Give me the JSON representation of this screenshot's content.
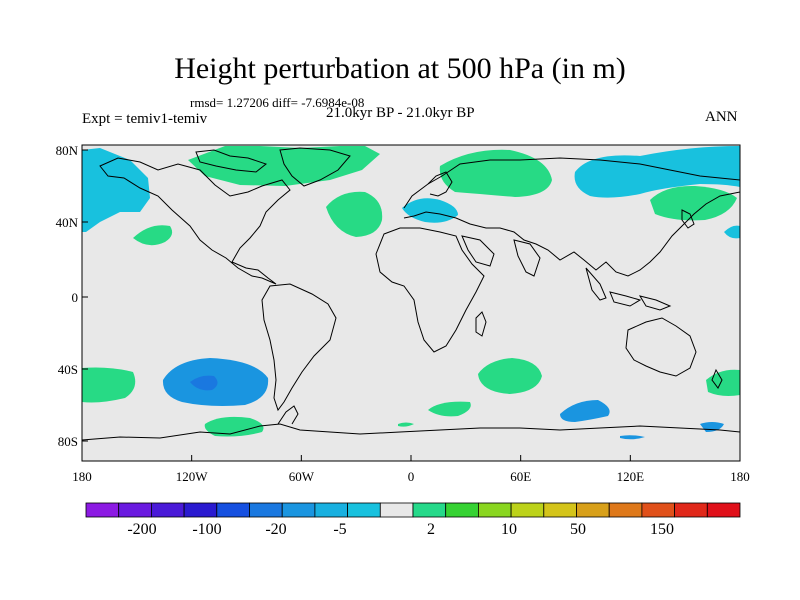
{
  "title": "Height perturbation at 500 hPa (in m)",
  "stats": "rmsd= 1.27206 diff= -7.6984e-08",
  "experiment": "Expt = temiv1-temiv",
  "period": "21.0kyr BP - 21.0kyr BP",
  "season": "ANN",
  "map": {
    "ocean_color": "#e8e8e8",
    "lat_ticks": [
      "80N",
      "40N",
      "0",
      "40S",
      "80S"
    ],
    "lon_ticks": [
      "180",
      "120W",
      "60W",
      "0",
      "60E",
      "120E",
      "180"
    ]
  },
  "anomaly_regions": [
    {
      "name": "north-pacific-neg",
      "sign": "negative",
      "level": "-5",
      "color": "#18c1de"
    },
    {
      "name": "greenland-pos",
      "sign": "positive",
      "level": "2",
      "color": "#27da85"
    },
    {
      "name": "north-atlantic-pos",
      "sign": "positive",
      "level": "2",
      "color": "#27da85"
    },
    {
      "name": "europe-neg",
      "sign": "negative",
      "level": "-5",
      "color": "#18c1de"
    },
    {
      "name": "siberia-pos",
      "sign": "positive",
      "level": "2",
      "color": "#27da85"
    },
    {
      "name": "north-pacific-east-neg",
      "sign": "negative",
      "level": "-5",
      "color": "#18c1de"
    },
    {
      "name": "japan-pos",
      "sign": "positive",
      "level": "2",
      "color": "#27da85"
    },
    {
      "name": "south-pacific-neg",
      "sign": "negative",
      "level": "-20",
      "color": "#1a95e0"
    },
    {
      "name": "southern-ocean-pos",
      "sign": "positive",
      "level": "2",
      "color": "#27da85"
    }
  ],
  "colorbar": {
    "colors": [
      "#8c1ae3",
      "#6a1ae0",
      "#4a1ad8",
      "#2a1ad0",
      "#1650e0",
      "#1a78e0",
      "#1a95e0",
      "#18b0e0",
      "#18c1de",
      "#e8e8e8",
      "#26d98a",
      "#36d233",
      "#8ad620",
      "#bcd21a",
      "#d4c41a",
      "#d8a01a",
      "#de781a",
      "#e0501a",
      "#e0281a",
      "#e0101a"
    ],
    "labels": [
      "-200",
      "-100",
      "-20",
      "-5",
      "2",
      "10",
      "50",
      "150"
    ]
  }
}
